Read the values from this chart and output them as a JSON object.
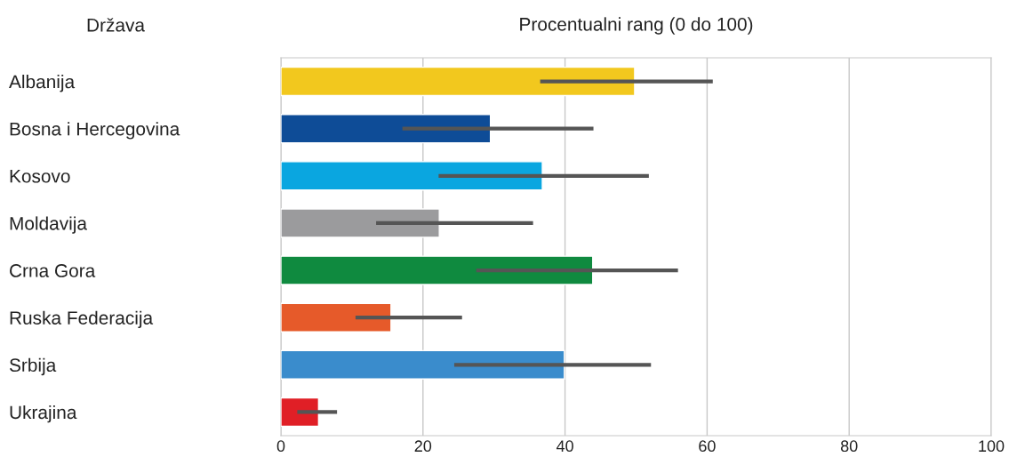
{
  "chart_data": {
    "type": "bar",
    "orientation": "horizontal",
    "title": "Procentualni rang (0 do 100)",
    "ylabel": "Država",
    "categories": [
      "Albanija",
      "Bosna i Hercegovina",
      "Kosovo",
      "Moldavija",
      "Crna Gora",
      "Ruska Federacija",
      "Srbija",
      "Ukrajina"
    ],
    "values": [
      49.8,
      29.5,
      36.8,
      22.3,
      43.9,
      15.5,
      39.9,
      5.3
    ],
    "errors": [
      [
        36.5,
        60.8
      ],
      [
        17.1,
        44.0
      ],
      [
        22.2,
        51.8
      ],
      [
        13.4,
        35.5
      ],
      [
        27.5,
        55.9
      ],
      [
        10.5,
        25.5
      ],
      [
        24.4,
        52.1
      ],
      [
        2.3,
        7.9
      ]
    ],
    "colors": [
      "#f2c81e",
      "#0e4c97",
      "#0aa6e0",
      "#9b9b9d",
      "#0f8a3f",
      "#e65a2a",
      "#3a8ccc",
      "#e01f26"
    ],
    "xlim": [
      0,
      100
    ],
    "xticks": [
      0,
      20,
      40,
      60,
      80,
      100
    ],
    "grid": "x"
  }
}
